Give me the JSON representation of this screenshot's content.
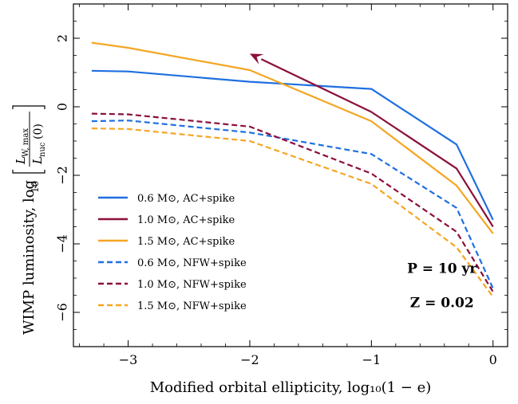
{
  "chart_data": {
    "type": "line",
    "xlabel": "Modified orbital ellipticity, log₁₀(1 − e)",
    "ylabel_main": "WIMP luminosity, log",
    "ylabel_sub": "10",
    "ylabel_frac_num": "L",
    "ylabel_frac_num_sub": "W, max",
    "ylabel_frac_den": "L",
    "ylabel_frac_den_sub": "nuc",
    "ylabel_frac_den_arg": "(0)",
    "xlim": [
      -3.45,
      0.12
    ],
    "ylim": [
      -7.0,
      3.0
    ],
    "x_ticks": [
      -3,
      -2,
      -1,
      0
    ],
    "x_tick_labels": [
      "−3",
      "−2",
      "−1",
      "0"
    ],
    "y_ticks": [
      -6,
      -4,
      -2,
      0,
      2
    ],
    "y_tick_labels": [
      "−6",
      "−4",
      "−2",
      "0",
      "2"
    ],
    "grid": false,
    "legend_position": "lower-left",
    "series": [
      {
        "name": "0.6 M⊙, AC+spike",
        "color": "#1f6fe0",
        "dash": "solid",
        "x": [
          -3.3,
          -3.0,
          -2.0,
          -1.0,
          -0.3,
          0.0
        ],
        "y": [
          1.05,
          1.03,
          0.73,
          0.52,
          -1.1,
          -3.3
        ]
      },
      {
        "name": "1.0 M⊙, AC+spike",
        "color": "#8b0f3a",
        "dash": "solid",
        "x": [
          -1.0,
          -0.3,
          0.0
        ],
        "y": [
          -0.15,
          -1.8,
          -3.5
        ]
      },
      {
        "name": "1.5 M⊙, AC+spike",
        "color": "#f5a623",
        "dash": "solid",
        "x": [
          -3.3,
          -3.0,
          -2.0,
          -1.0,
          -0.3,
          0.0
        ],
        "y": [
          1.87,
          1.72,
          1.07,
          -0.42,
          -2.3,
          -3.7
        ]
      },
      {
        "name": "0.6 M⊙, NFW+spike",
        "color": "#1f6fe0",
        "dash": "dashed",
        "x": [
          -3.3,
          -3.0,
          -2.0,
          -1.0,
          -0.3,
          0.0
        ],
        "y": [
          -0.42,
          -0.4,
          -0.75,
          -1.38,
          -2.95,
          -5.3
        ]
      },
      {
        "name": "1.0 M⊙, NFW+spike",
        "color": "#8b0f3a",
        "dash": "dashed",
        "x": [
          -3.3,
          -3.0,
          -2.0,
          -1.0,
          -0.3,
          0.0
        ],
        "y": [
          -0.2,
          -0.22,
          -0.58,
          -1.95,
          -3.65,
          -5.4
        ]
      },
      {
        "name": "1.5 M⊙, NFW+spike",
        "color": "#f5a623",
        "dash": "dashed",
        "x": [
          -3.3,
          -3.0,
          -2.0,
          -1.0,
          -0.3,
          0.0
        ],
        "y": [
          -0.63,
          -0.65,
          -1.0,
          -2.25,
          -4.1,
          -5.55
        ]
      }
    ],
    "arrow": {
      "color": "#8b0f3a",
      "from": [
        -1.0,
        -0.15
      ],
      "to": [
        -2.0,
        1.55
      ]
    },
    "annotations": [
      {
        "text": "P = 10 yr",
        "x": -0.42,
        "y": -4.85
      },
      {
        "text": "Z = 0.02",
        "x": -0.42,
        "y": -5.85
      }
    ]
  }
}
